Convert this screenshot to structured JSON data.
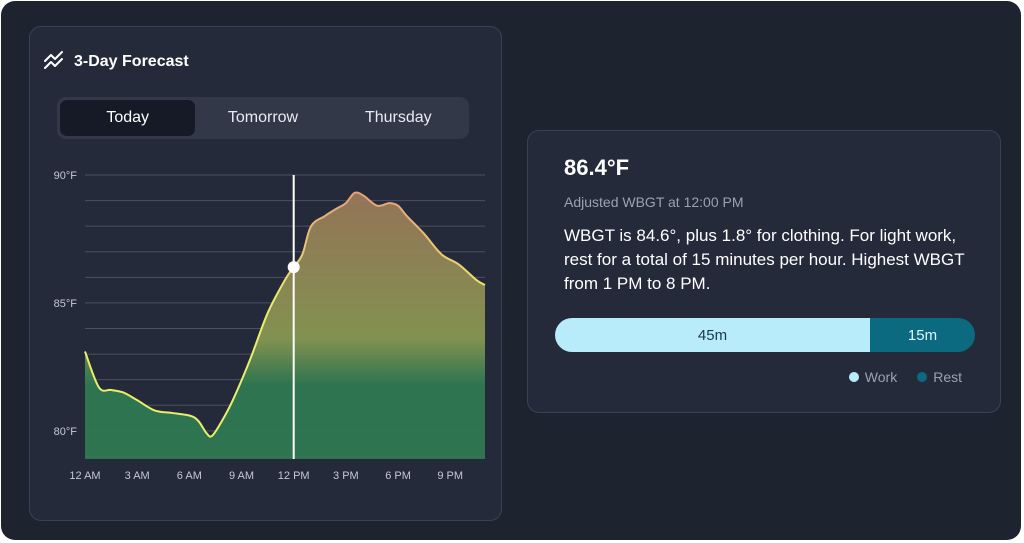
{
  "forecast": {
    "title": "3-Day Forecast",
    "icon": "trend-lines-icon",
    "tabs": [
      {
        "label": "Today",
        "active": true
      },
      {
        "label": "Tomorrow",
        "active": false
      },
      {
        "label": "Thursday",
        "active": false
      }
    ]
  },
  "chart_data": {
    "type": "area",
    "title": "",
    "xlabel": "",
    "ylabel": "",
    "y_tick_labels": [
      "80°F",
      "85°F",
      "90°F"
    ],
    "y_ticks": [
      80,
      85,
      90
    ],
    "ylim": [
      78.9,
      90
    ],
    "x_tick_labels": [
      "12 AM",
      "3 AM",
      "6 AM",
      "9 AM",
      "12 PM",
      "3 PM",
      "6 PM",
      "9 PM"
    ],
    "x_ticks": [
      0,
      3,
      6,
      9,
      12,
      15,
      18,
      21
    ],
    "xlim": [
      0,
      23
    ],
    "grid": true,
    "selected_x": 12,
    "selected_y": 86.4,
    "series": [
      {
        "x": [
          0,
          0.8,
          1.5,
          2.2,
          3,
          4,
          5,
          6,
          6.5,
          7,
          7.3,
          7.8,
          8.5,
          9.5,
          10.5,
          11.5,
          12,
          12.5,
          13,
          13.8,
          14.5,
          15,
          15.5,
          16,
          16.8,
          17.5,
          18,
          18.5,
          19.5,
          20.5,
          21.5,
          22.5,
          23
        ],
        "values": [
          83.1,
          81.7,
          81.6,
          81.5,
          81.2,
          80.8,
          80.7,
          80.6,
          80.4,
          79.9,
          79.8,
          80.3,
          81.2,
          82.8,
          84.6,
          85.9,
          86.4,
          86.9,
          88.0,
          88.4,
          88.7,
          88.9,
          89.3,
          89.2,
          88.8,
          88.9,
          88.8,
          88.4,
          87.7,
          86.9,
          86.5,
          85.9,
          85.7
        ]
      }
    ],
    "colors": {
      "grid": "#4a5064",
      "line_hot": "#e8a07a",
      "line_cool": "#e9ef6a",
      "fill_top": "#9d7a5a",
      "fill_mid": "#8a9a52",
      "fill_bottom": "#2f7a52",
      "marker": "#ffffff"
    }
  },
  "detail": {
    "temperature": "86.4°F",
    "subtitle": "Adjusted WBGT at 12:00 PM",
    "description": "WBGT is 84.6°, plus 1.8° for clothing. For light work, rest for a total of 15 minutes per hour. Highest WBGT from 1 PM to 8 PM.",
    "work_label": "45m",
    "rest_label": "15m",
    "work_minutes": 45,
    "rest_minutes": 15,
    "legend_work": "Work",
    "legend_rest": "Rest",
    "color_work": "#b8ecfb",
    "color_rest": "#0b6a80"
  }
}
